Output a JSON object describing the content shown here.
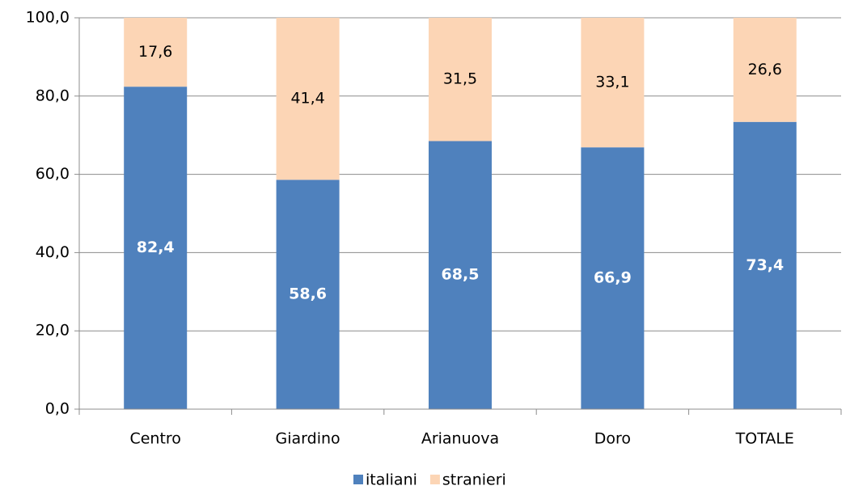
{
  "chart_data": {
    "type": "stacked_bar",
    "categories": [
      "Centro",
      "Giardino",
      "Arianuova",
      "Doro",
      "TOTALE"
    ],
    "series": [
      {
        "name": "italiani",
        "color": "#4f81bd",
        "values": [
          82.4,
          58.6,
          68.5,
          66.9,
          73.4
        ],
        "value_labels": [
          "82,4",
          "58,6",
          "68,5",
          "66,9",
          "73,4"
        ]
      },
      {
        "name": "stranieri",
        "color": "#fcd5b5",
        "values": [
          17.6,
          41.4,
          31.5,
          33.1,
          26.6
        ],
        "value_labels": [
          "17,6",
          "41,4",
          "31,5",
          "33,1",
          "26,6"
        ]
      }
    ],
    "ylim": [
      0,
      100
    ],
    "yticks": [
      {
        "value": 0,
        "label": "0,0"
      },
      {
        "value": 20,
        "label": "20,0"
      },
      {
        "value": 40,
        "label": "40,0"
      },
      {
        "value": 60,
        "label": "60,0"
      },
      {
        "value": 80,
        "label": "80,0"
      },
      {
        "value": 100,
        "label": "100,0"
      }
    ],
    "grid": true,
    "legend": "bottom"
  }
}
